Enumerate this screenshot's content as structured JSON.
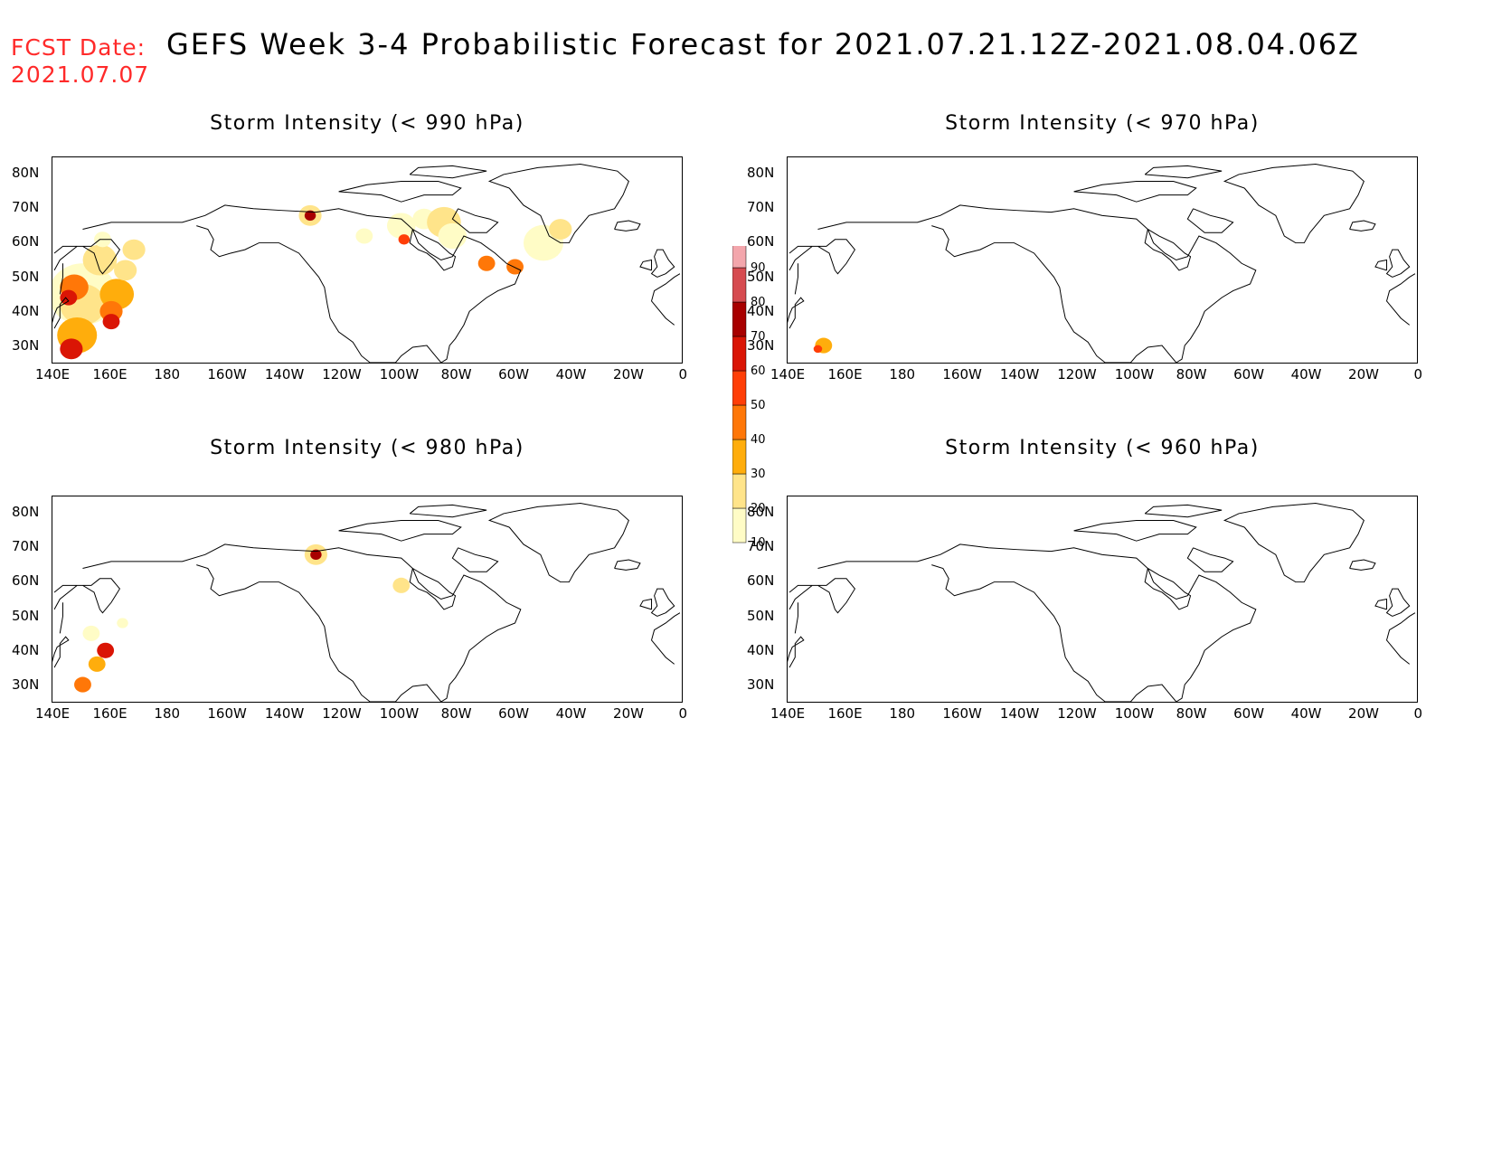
{
  "header": {
    "fcst_label": "FCST Date:",
    "fcst_value": "2021.07.07",
    "title": "GEFS Week 3-4 Probabilistic Forecast for 2021.07.21.12Z-2021.08.04.06Z"
  },
  "axes": {
    "lat_ticks": [
      "80N",
      "70N",
      "60N",
      "50N",
      "40N",
      "30N"
    ],
    "lon_ticks": [
      "140E",
      "160E",
      "180",
      "160W",
      "140W",
      "120W",
      "100W",
      "80W",
      "60W",
      "40W",
      "20W",
      "0"
    ]
  },
  "panels": [
    {
      "id": "p990",
      "title": "Storm Intensity (< 990 hPa)"
    },
    {
      "id": "p970",
      "title": "Storm Intensity (< 970 hPa)"
    },
    {
      "id": "p980",
      "title": "Storm Intensity (< 980 hPa)"
    },
    {
      "id": "p960",
      "title": "Storm Intensity (< 960 hPa)"
    }
  ],
  "colorbar": {
    "levels": [
      "10",
      "20",
      "30",
      "40",
      "50",
      "60",
      "70",
      "80",
      "90"
    ],
    "colors": [
      "#fffcc6",
      "#ffe48a",
      "#ffad0c",
      "#ff7708",
      "#ff3e07",
      "#da1505",
      "#a80000",
      "#d64b50",
      "#f3a6ac",
      "#fde0e4"
    ]
  }
}
